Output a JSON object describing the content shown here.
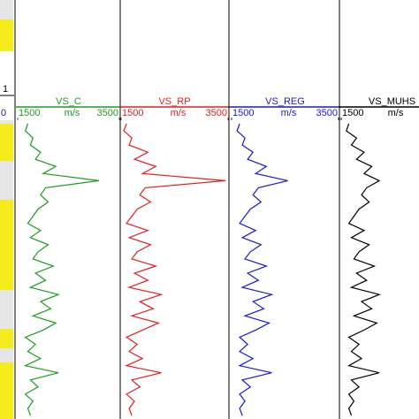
{
  "left_track": {
    "top_label": "1",
    "scale_label": "0"
  },
  "chart_data": [
    {
      "type": "line",
      "title": "VS_C",
      "unit": "m/s",
      "color": "#1f9a1f",
      "xlim": [
        1500,
        3500
      ],
      "xticks": [
        1500,
        3500
      ],
      "values": [
        1700,
        1650,
        1800,
        1750,
        1950,
        1850,
        2250,
        2000,
        3100,
        2050,
        1950,
        2100,
        1900,
        1800,
        1700,
        1950,
        1750,
        2100,
        1900,
        1800,
        2200,
        1850,
        2050,
        1750,
        2300,
        1950,
        2150,
        1800,
        2250,
        2000,
        1650,
        1850,
        1700,
        1950,
        1650,
        2300,
        1750,
        1900,
        1650,
        1800,
        1700,
        1750
      ]
    },
    {
      "type": "line",
      "title": "VS_RP",
      "unit": "m/s",
      "color": "#e02020",
      "xlim": [
        1500,
        3500
      ],
      "xticks": [
        1500,
        3500
      ],
      "values": [
        1600,
        1550,
        1700,
        1650,
        2000,
        1750,
        2150,
        1900,
        3450,
        1950,
        1850,
        2050,
        1800,
        1700,
        1600,
        2000,
        1650,
        2050,
        1800,
        1700,
        2150,
        1750,
        2000,
        1650,
        2250,
        1850,
        2100,
        1700,
        2200,
        1900,
        1600,
        1800,
        1650,
        1900,
        1600,
        2250,
        1700,
        1850,
        1600,
        1750,
        1650,
        1700
      ]
    },
    {
      "type": "line",
      "title": "VS_REG",
      "unit": "m/s",
      "color": "#1a1acc",
      "xlim": [
        1500,
        3500
      ],
      "xticks": [
        1500,
        3500
      ],
      "values": [
        1650,
        1600,
        1750,
        1700,
        1900,
        1800,
        2150,
        1950,
        2550,
        2000,
        1900,
        2050,
        1850,
        1750,
        1650,
        1950,
        1700,
        2050,
        1850,
        1750,
        2150,
        1800,
        2000,
        1700,
        2250,
        1900,
        2100,
        1750,
        2200,
        1950,
        1650,
        1800,
        1650,
        1900,
        1650,
        2250,
        1700,
        1850,
        1650,
        1750,
        1650,
        1700
      ]
    },
    {
      "type": "line",
      "title": "VS_MUHS",
      "unit": "m/s",
      "color": "#000000",
      "xlim": [
        1500,
        3500
      ],
      "xticks": [
        1500
      ],
      "values": [
        1650,
        1600,
        1800,
        1700,
        1950,
        1800,
        2100,
        1950,
        2250,
        2000,
        1900,
        2050,
        1850,
        1750,
        1650,
        1950,
        1700,
        2050,
        1850,
        1750,
        2150,
        1800,
        2000,
        1700,
        2250,
        1900,
        2100,
        1750,
        2200,
        1950,
        1650,
        1850,
        1700,
        1900,
        1650,
        2250,
        1700,
        1850,
        1650,
        1750,
        1650,
        1700
      ]
    }
  ]
}
